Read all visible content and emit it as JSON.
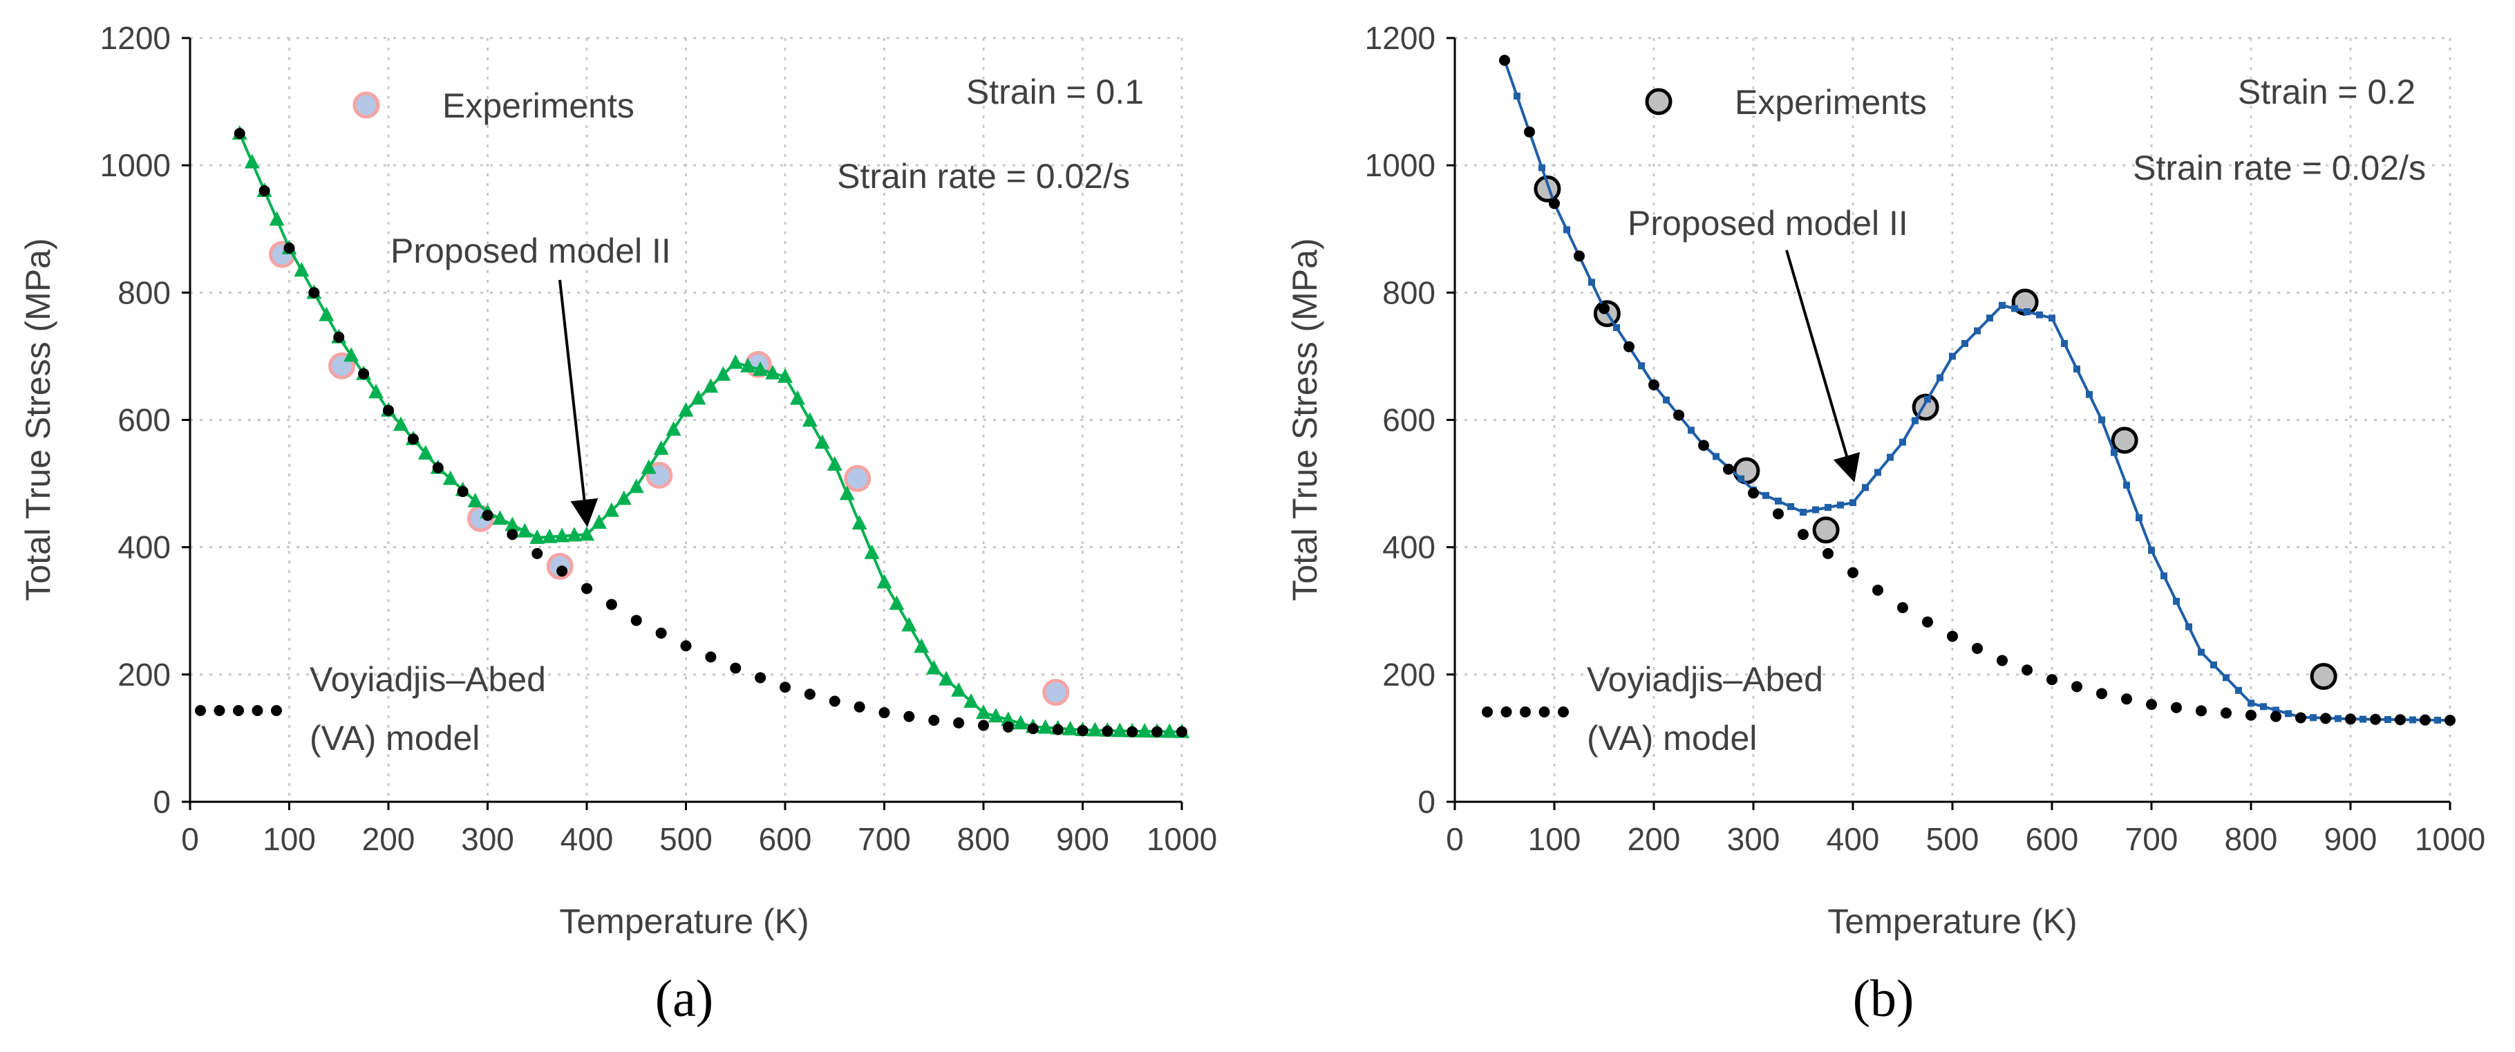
{
  "chart_data": [
    {
      "type": "scatter",
      "panel_label": "(a)",
      "xlabel": "Temperature (K)",
      "ylabel": "Total True Stress (MPa)",
      "xlim": [
        0,
        1000
      ],
      "ylim": [
        0,
        1200
      ],
      "xticks": [
        0,
        100,
        200,
        300,
        400,
        500,
        600,
        700,
        800,
        900,
        1000
      ],
      "yticks": [
        0,
        200,
        400,
        600,
        800,
        1000,
        1200
      ],
      "grid": true,
      "annotations": {
        "strain": "Strain = 0.1",
        "strain_rate": "Strain rate = 0.02/s",
        "model_arrow": "Proposed model II",
        "arrow_tip": [
          400,
          440
        ],
        "legend_experiments": "Experiments",
        "legend_va_line1": "Voyiadjis–Abed",
        "legend_va_line2": "(VA) model"
      },
      "series": [
        {
          "name": "Experiments",
          "kind": "markers",
          "color": "#b4c7e7",
          "edge_color": "#f4a4a4",
          "x": [
            93,
            153,
            293,
            373,
            473,
            573,
            673,
            873
          ],
          "y": [
            860,
            685,
            445,
            370,
            513,
            687,
            508,
            172
          ]
        },
        {
          "name": "Proposed model II",
          "kind": "triangles",
          "color": "#00b050",
          "x": [
            50,
            100,
            150,
            200,
            250,
            300,
            350,
            400,
            450,
            500,
            550,
            600,
            650,
            700,
            750,
            800,
            850,
            900,
            950,
            1000
          ],
          "y": [
            1050,
            870,
            730,
            615,
            525,
            455,
            415,
            420,
            495,
            615,
            690,
            668,
            530,
            345,
            210,
            140,
            118,
            113,
            111,
            110
          ]
        },
        {
          "name": "Voyiadjis–Abed (VA) model",
          "kind": "dots",
          "color": "#000000",
          "x": [
            50,
            100,
            150,
            200,
            250,
            300,
            350,
            400,
            450,
            500,
            550,
            600,
            650,
            700,
            750,
            800,
            850,
            900,
            950,
            1000
          ],
          "y": [
            1050,
            870,
            730,
            615,
            525,
            450,
            390,
            335,
            285,
            245,
            210,
            180,
            158,
            140,
            128,
            120,
            115,
            112,
            110,
            110
          ]
        }
      ]
    },
    {
      "type": "scatter",
      "panel_label": "(b)",
      "xlabel": "Temperature (K)",
      "ylabel": "Total True Stress (MPa)",
      "xlim": [
        0,
        1000
      ],
      "ylim": [
        0,
        1200
      ],
      "xticks": [
        0,
        100,
        200,
        300,
        400,
        500,
        600,
        700,
        800,
        900,
        1000
      ],
      "yticks": [
        0,
        200,
        400,
        600,
        800,
        1000,
        1200
      ],
      "grid": true,
      "annotations": {
        "strain": "Strain = 0.2",
        "strain_rate": "Strain rate = 0.02/s",
        "model_arrow": "Proposed model II",
        "arrow_tip": [
          400,
          510
        ],
        "legend_experiments": "Experiments",
        "legend_va_line1": "Voyiadjis–Abed",
        "legend_va_line2": "(VA) model"
      },
      "series": [
        {
          "name": "Experiments",
          "kind": "markers",
          "color": "#bfbfbf",
          "edge_color": "#000000",
          "x": [
            93,
            153,
            293,
            373,
            473,
            573,
            673,
            873
          ],
          "y": [
            963,
            767,
            520,
            427,
            620,
            785,
            568,
            197
          ]
        },
        {
          "name": "Proposed model II",
          "kind": "squares",
          "color": "#1f5fa8",
          "x": [
            50,
            100,
            150,
            200,
            250,
            300,
            350,
            400,
            450,
            500,
            550,
            600,
            650,
            700,
            750,
            800,
            850,
            900,
            950,
            1000
          ],
          "y": [
            1165,
            940,
            775,
            655,
            560,
            490,
            455,
            470,
            565,
            700,
            780,
            760,
            600,
            395,
            235,
            155,
            133,
            130,
            129,
            128
          ]
        },
        {
          "name": "Voyiadjis–Abed (VA) model",
          "kind": "dots",
          "color": "#000000",
          "x": [
            50,
            100,
            150,
            200,
            250,
            300,
            350,
            400,
            450,
            500,
            550,
            600,
            650,
            700,
            750,
            800,
            850,
            900,
            950,
            1000
          ],
          "y": [
            1165,
            940,
            775,
            655,
            560,
            485,
            420,
            360,
            305,
            260,
            222,
            192,
            170,
            153,
            143,
            136,
            132,
            130,
            129,
            128
          ]
        }
      ]
    }
  ]
}
